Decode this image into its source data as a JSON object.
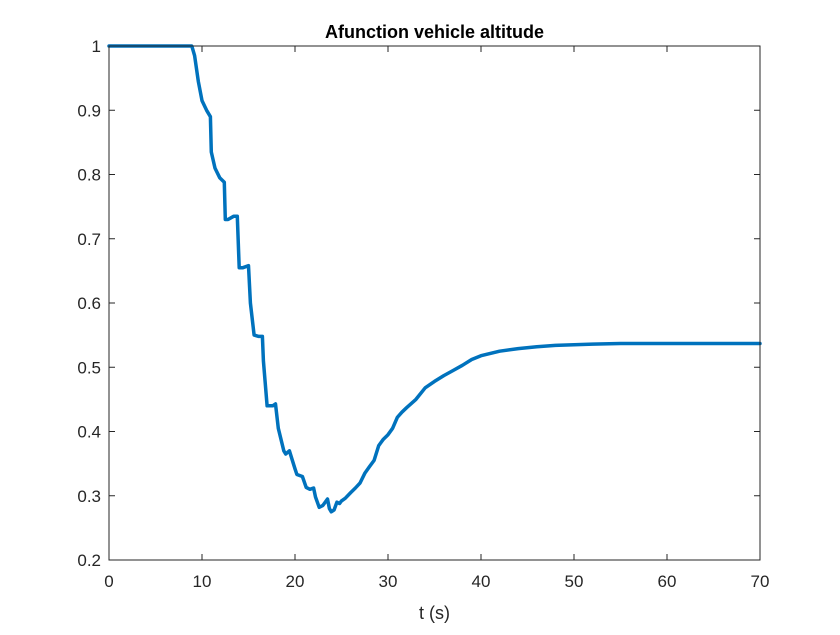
{
  "colors": {
    "background": "#ffffff",
    "axes": "#262626",
    "series": "#0072BD"
  },
  "chart_data": {
    "type": "line",
    "title": "Afunction vehicle altitude",
    "xlabel": "t (s)",
    "ylabel": "",
    "xlim": [
      0,
      70
    ],
    "ylim": [
      0.2,
      1
    ],
    "xticks": [
      0,
      10,
      20,
      30,
      40,
      50,
      60,
      70
    ],
    "xtick_labels": [
      "0",
      "10",
      "20",
      "30",
      "40",
      "50",
      "60",
      "70"
    ],
    "yticks": [
      0.2,
      0.3,
      0.4,
      0.5,
      0.6,
      0.7,
      0.8,
      0.9,
      1.0
    ],
    "ytick_labels": [
      "0.2",
      "0.3",
      "0.4",
      "0.5",
      "0.6",
      "0.7",
      "0.8",
      "0.9",
      "1"
    ],
    "grid": false,
    "legend": false,
    "series": [
      {
        "color": "#0072BD",
        "x": [
          0,
          8.9,
          9.2,
          9.6,
          10.0,
          10.5,
          10.9,
          11.0,
          11.4,
          11.9,
          12.4,
          12.5,
          12.8,
          13.4,
          13.8,
          14.0,
          14.4,
          15.0,
          15.2,
          15.6,
          16.1,
          16.5,
          16.6,
          17.0,
          17.6,
          17.9,
          18.2,
          18.8,
          19.0,
          19.4,
          20.0,
          20.2,
          20.8,
          21.2,
          21.6,
          22.0,
          22.2,
          22.6,
          23.0,
          23.5,
          23.7,
          23.9,
          24.2,
          24.5,
          24.8,
          25.0,
          25.4,
          26.0,
          26.5,
          27.0,
          27.5,
          28.0,
          28.5,
          29.0,
          29.5,
          30.0,
          30.5,
          31.0,
          31.5,
          32.0,
          33.0,
          34.0,
          35.0,
          36.0,
          37.0,
          38.0,
          39.0,
          40.0,
          42.0,
          44.0,
          46.0,
          48.0,
          50.0,
          52.0,
          55.0,
          58.0,
          60.0,
          62.0,
          65.0,
          70.0
        ],
        "y": [
          1.0,
          1.0,
          0.985,
          0.945,
          0.915,
          0.9,
          0.89,
          0.835,
          0.81,
          0.795,
          0.788,
          0.73,
          0.73,
          0.735,
          0.735,
          0.655,
          0.655,
          0.658,
          0.6,
          0.55,
          0.548,
          0.548,
          0.51,
          0.44,
          0.44,
          0.443,
          0.405,
          0.37,
          0.365,
          0.37,
          0.342,
          0.333,
          0.33,
          0.313,
          0.31,
          0.312,
          0.298,
          0.282,
          0.285,
          0.295,
          0.28,
          0.275,
          0.278,
          0.29,
          0.288,
          0.292,
          0.296,
          0.305,
          0.312,
          0.32,
          0.335,
          0.345,
          0.355,
          0.378,
          0.388,
          0.395,
          0.405,
          0.422,
          0.43,
          0.437,
          0.45,
          0.468,
          0.478,
          0.487,
          0.495,
          0.503,
          0.512,
          0.518,
          0.525,
          0.529,
          0.532,
          0.534,
          0.535,
          0.536,
          0.537,
          0.537,
          0.537,
          0.537,
          0.537,
          0.537
        ]
      }
    ]
  }
}
